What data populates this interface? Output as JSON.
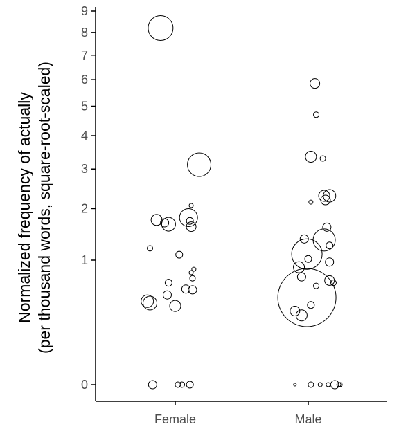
{
  "chart_data": {
    "type": "scatter",
    "ylabel_line1": "Normalized frequency of actually",
    "ylabel_line2": "(per thousand words, square-root-scaled)",
    "xlabel": "",
    "categories": [
      "Female",
      "Male"
    ],
    "y_scale": "sqrt",
    "ylim": [
      0,
      9
    ],
    "y_ticks": [
      0,
      1,
      2,
      3,
      4,
      5,
      6,
      7,
      8,
      9
    ],
    "grid": false,
    "legend": "none",
    "colors": {
      "point_stroke": "#000000",
      "axis": "#000000",
      "tick_label": "#4d4d4d"
    },
    "series": [
      {
        "category": "Female",
        "points": [
          {
            "jitter": -0.11,
            "y": 8.2,
            "r": 18
          },
          {
            "jitter": 0.18,
            "y": 3.12,
            "r": 17
          },
          {
            "jitter": 0.12,
            "y": 2.07,
            "r": 3
          },
          {
            "jitter": -0.14,
            "y": 1.75,
            "r": 8
          },
          {
            "jitter": -0.05,
            "y": 1.66,
            "r": 10
          },
          {
            "jitter": -0.08,
            "y": 1.69,
            "r": 6
          },
          {
            "jitter": 0.1,
            "y": 1.8,
            "r": 13
          },
          {
            "jitter": 0.11,
            "y": 1.73,
            "r": 5
          },
          {
            "jitter": 0.12,
            "y": 1.61,
            "r": 7
          },
          {
            "jitter": -0.19,
            "y": 1.2,
            "r": 4
          },
          {
            "jitter": 0.03,
            "y": 1.09,
            "r": 5
          },
          {
            "jitter": 0.14,
            "y": 0.86,
            "r": 3
          },
          {
            "jitter": 0.12,
            "y": 0.81,
            "r": 3
          },
          {
            "jitter": 0.13,
            "y": 0.73,
            "r": 4
          },
          {
            "jitter": -0.05,
            "y": 0.67,
            "r": 5
          },
          {
            "jitter": 0.08,
            "y": 0.59,
            "r": 6
          },
          {
            "jitter": 0.13,
            "y": 0.58,
            "r": 6
          },
          {
            "jitter": -0.06,
            "y": 0.52,
            "r": 6
          },
          {
            "jitter": -0.21,
            "y": 0.45,
            "r": 9
          },
          {
            "jitter": -0.19,
            "y": 0.43,
            "r": 10
          },
          {
            "jitter": 0.0,
            "y": 0.4,
            "r": 8
          },
          {
            "jitter": -0.17,
            "y": 0,
            "r": 6
          },
          {
            "jitter": 0.02,
            "y": 0,
            "r": 4
          },
          {
            "jitter": 0.05,
            "y": 0,
            "r": 4
          },
          {
            "jitter": 0.11,
            "y": 0,
            "r": 5
          }
        ]
      },
      {
        "category": "Male",
        "points": [
          {
            "jitter": 0.05,
            "y": 5.85,
            "r": 7
          },
          {
            "jitter": 0.06,
            "y": 4.7,
            "r": 4
          },
          {
            "jitter": 0.02,
            "y": 3.35,
            "r": 8
          },
          {
            "jitter": 0.11,
            "y": 3.3,
            "r": 4
          },
          {
            "jitter": 0.02,
            "y": 2.15,
            "r": 3
          },
          {
            "jitter": 0.12,
            "y": 2.3,
            "r": 8
          },
          {
            "jitter": 0.16,
            "y": 2.3,
            "r": 9
          },
          {
            "jitter": 0.13,
            "y": 2.2,
            "r": 7
          },
          {
            "jitter": 0.14,
            "y": 1.6,
            "r": 6
          },
          {
            "jitter": -0.03,
            "y": 1.37,
            "r": 6
          },
          {
            "jitter": 0.12,
            "y": 1.35,
            "r": 16
          },
          {
            "jitter": 0.16,
            "y": 1.25,
            "r": 5
          },
          {
            "jitter": -0.01,
            "y": 1.1,
            "r": 22
          },
          {
            "jitter": 0.0,
            "y": 1.02,
            "r": 5
          },
          {
            "jitter": 0.16,
            "y": 0.97,
            "r": 6
          },
          {
            "jitter": -0.07,
            "y": 0.89,
            "r": 8
          },
          {
            "jitter": -0.05,
            "y": 0.75,
            "r": 6
          },
          {
            "jitter": 0.16,
            "y": 0.7,
            "r": 7
          },
          {
            "jitter": 0.19,
            "y": 0.67,
            "r": 4
          },
          {
            "jitter": 0.06,
            "y": 0.63,
            "r": 4
          },
          {
            "jitter": -0.01,
            "y": 0.49,
            "r": 42
          },
          {
            "jitter": 0.02,
            "y": 0.41,
            "r": 5
          },
          {
            "jitter": -0.1,
            "y": 0.35,
            "r": 7
          },
          {
            "jitter": -0.05,
            "y": 0.31,
            "r": 8
          },
          {
            "jitter": -0.1,
            "y": 0,
            "r": 2
          },
          {
            "jitter": 0.02,
            "y": 0,
            "r": 4
          },
          {
            "jitter": 0.09,
            "y": 0,
            "r": 3
          },
          {
            "jitter": 0.15,
            "y": 0,
            "r": 3
          },
          {
            "jitter": 0.2,
            "y": 0,
            "r": 6
          },
          {
            "jitter": 0.23,
            "y": 0,
            "r": 3
          },
          {
            "jitter": 0.24,
            "y": 0,
            "r": 3
          }
        ]
      }
    ]
  }
}
